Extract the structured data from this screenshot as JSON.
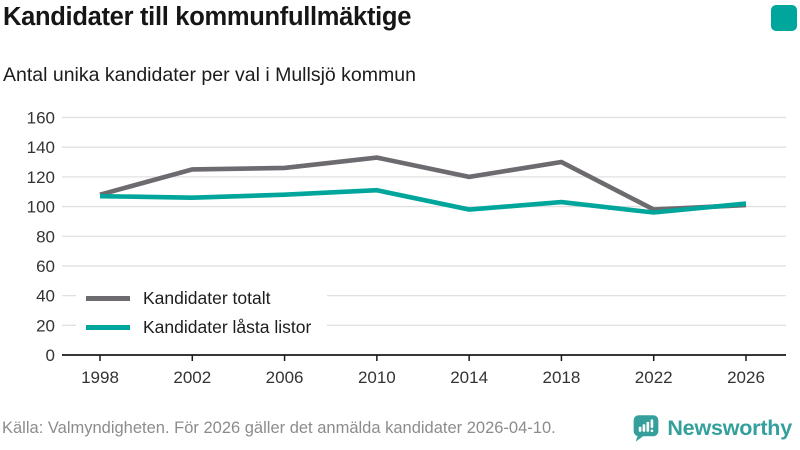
{
  "header": {
    "title": "Kandidater till kommunfullmäktige",
    "subtitle": "Antal unika kandidater per val i Mullsjö kommun"
  },
  "chart_data": {
    "type": "line",
    "categories": [
      "1998",
      "2002",
      "2006",
      "2010",
      "2014",
      "2018",
      "2022",
      "2026"
    ],
    "series": [
      {
        "name": "Kandidater totalt",
        "color": "#6d6a70",
        "values": [
          108,
          125,
          126,
          133,
          120,
          130,
          98,
          101
        ]
      },
      {
        "name": "Kandidater låsta listor",
        "color": "#00a69c",
        "values": [
          107,
          106,
          108,
          111,
          98,
          103,
          96,
          102
        ]
      }
    ],
    "title": "Kandidater till kommunfullmäktige",
    "subtitle": "Antal unika kandidater per val i Mullsjö kommun",
    "xlabel": "",
    "ylabel": "",
    "ylim": [
      0,
      160
    ],
    "ytick_step": 20,
    "grid": true,
    "legend_position": "inside-bottom-left"
  },
  "footer": {
    "source": "Källa: Valmyndigheten. För 2026 gäller det anmälda kandidater 2026-04-10.",
    "brand": "Newsworthy"
  },
  "icons": {
    "logo": "newsworthy-speech-bubble-bar-chart-icon"
  },
  "colors": {
    "accent_teal": "#00a69c",
    "series_gray": "#6d6a70",
    "brand_teal": "#35a09b",
    "grid": "#e0e0e0",
    "axis": "#1a1a1a",
    "muted_text": "#8c8c8c"
  }
}
